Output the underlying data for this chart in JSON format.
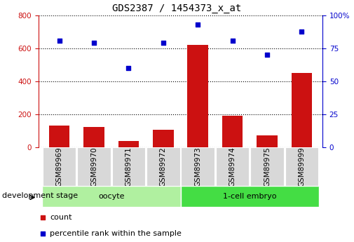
{
  "title": "GDS2387 / 1454373_x_at",
  "samples": [
    "GSM89969",
    "GSM89970",
    "GSM89971",
    "GSM89972",
    "GSM89973",
    "GSM89974",
    "GSM89975",
    "GSM89999"
  ],
  "counts": [
    130,
    125,
    38,
    108,
    620,
    192,
    72,
    452
  ],
  "percentiles": [
    81,
    79,
    60,
    79,
    93,
    81,
    70,
    88
  ],
  "groups": [
    {
      "label": "oocyte",
      "start": 0,
      "end": 4,
      "color": "#b0f0a0"
    },
    {
      "label": "1-cell embryo",
      "start": 4,
      "end": 8,
      "color": "#44dd44"
    }
  ],
  "bar_color": "#cc1111",
  "dot_color": "#0000cc",
  "left_axis_color": "#cc1111",
  "right_axis_color": "#0000cc",
  "ylim_left": [
    0,
    800
  ],
  "ylim_right": [
    0,
    100
  ],
  "yticks_left": [
    0,
    200,
    400,
    600,
    800
  ],
  "yticks_right": [
    0,
    25,
    50,
    75,
    100
  ],
  "legend_items": [
    {
      "label": "count",
      "color": "#cc1111",
      "marker": "s"
    },
    {
      "label": "percentile rank within the sample",
      "color": "#0000cc",
      "marker": "s"
    }
  ],
  "dev_stage_label": "development stage",
  "title_fontsize": 10,
  "tick_fontsize": 7.5,
  "label_fontsize": 8,
  "sample_box_color": "#d8d8d8"
}
